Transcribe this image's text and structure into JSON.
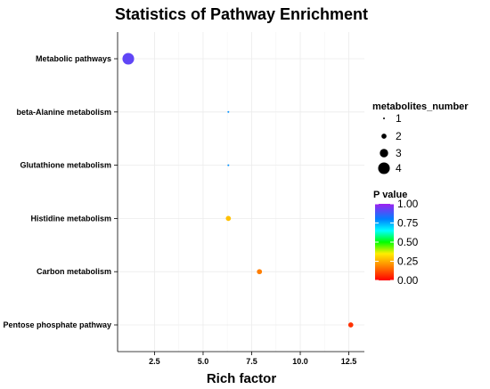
{
  "chart_data": {
    "type": "scatter",
    "title": "Statistics of Pathway Enrichment",
    "xlabel": "Rich factor",
    "ylabel": "",
    "xlim": [
      0.6,
      13.3
    ],
    "xticks": [
      2.5,
      5.0,
      7.5,
      10.0,
      12.5
    ],
    "xtick_labels": [
      "2.5",
      "5.0",
      "7.5",
      "10.0",
      "12.5"
    ],
    "categories": [
      "Metabolic pathways",
      "beta-Alanine metabolism",
      "Glutathione metabolism",
      "Histidine metabolism",
      "Carbon metabolism",
      "Pentose phosphate pathway"
    ],
    "points": [
      {
        "pathway": "Metabolic pathways",
        "rich_factor": 1.15,
        "metabolites_number": 4,
        "p_value": 0.92
      },
      {
        "pathway": "beta-Alanine metabolism",
        "rich_factor": 6.3,
        "metabolites_number": 1,
        "p_value": 0.78
      },
      {
        "pathway": "Glutathione metabolism",
        "rich_factor": 6.3,
        "metabolites_number": 1,
        "p_value": 0.78
      },
      {
        "pathway": "Histidine metabolism",
        "rich_factor": 6.3,
        "metabolites_number": 2,
        "p_value": 0.28
      },
      {
        "pathway": "Carbon metabolism",
        "rich_factor": 7.9,
        "metabolites_number": 2,
        "p_value": 0.18
      },
      {
        "pathway": "Pentose phosphate pathway",
        "rich_factor": 12.6,
        "metabolites_number": 2,
        "p_value": 0.07
      }
    ],
    "size_legend": {
      "title": "metabolites_number",
      "values": [
        1,
        2,
        3,
        4
      ],
      "labels": [
        "1",
        "2",
        "3",
        "4"
      ]
    },
    "color_legend": {
      "title": "P value",
      "range": [
        0.0,
        1.0
      ],
      "ticks": [
        1.0,
        0.75,
        0.5,
        0.25,
        0.0
      ],
      "tick_labels": [
        "1.00",
        "0.75",
        "0.50",
        "0.25",
        "0.00"
      ],
      "colors": [
        "#ff0000",
        "#ff8c00",
        "#ffff00",
        "#00ff00",
        "#00ffff",
        "#0080ff",
        "#a020f0"
      ]
    },
    "grid": true,
    "panel_background": "#ffffff",
    "grid_color": "#ebebeb"
  }
}
